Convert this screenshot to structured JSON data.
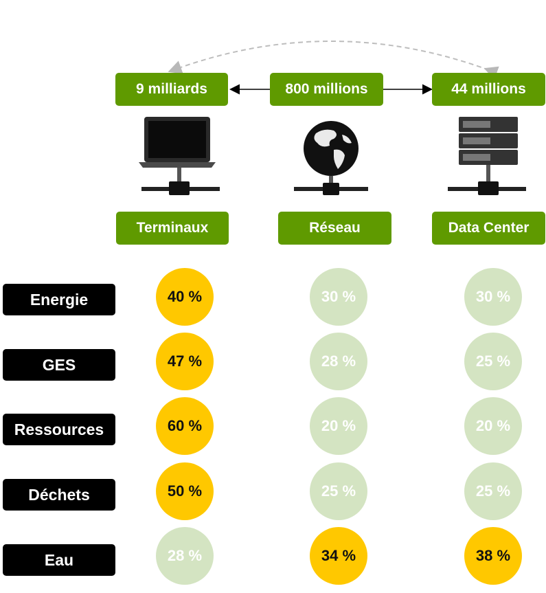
{
  "counts": [
    {
      "label": "9 milliards"
    },
    {
      "label": "800 millions"
    },
    {
      "label": "44 millions"
    }
  ],
  "columns": [
    {
      "label": "Terminaux",
      "icon": "laptop-network-icon"
    },
    {
      "label": "Réseau",
      "icon": "globe-network-icon"
    },
    {
      "label": "Data Center",
      "icon": "server-network-icon"
    }
  ],
  "rows": [
    {
      "label": "Energie",
      "values": [
        "40 %",
        "30 %",
        "30 %"
      ],
      "highlight": [
        true,
        false,
        false
      ]
    },
    {
      "label": "GES",
      "values": [
        "47 %",
        "28 %",
        "25 %"
      ],
      "highlight": [
        true,
        false,
        false
      ]
    },
    {
      "label": "Ressources",
      "values": [
        "60 %",
        "20 %",
        "20 %"
      ],
      "highlight": [
        true,
        false,
        false
      ]
    },
    {
      "label": "Déchets",
      "values": [
        "50 %",
        "25 %",
        "25 %"
      ],
      "highlight": [
        true,
        false,
        false
      ]
    },
    {
      "label": "Eau",
      "values": [
        "28 %",
        "34 %",
        "38 %"
      ],
      "highlight": [
        false,
        true,
        true
      ]
    }
  ],
  "colors": {
    "green": "#5f9a00",
    "highlight": "#ffc800",
    "muted": "#d4e4c2",
    "label_bg": "#000000"
  }
}
